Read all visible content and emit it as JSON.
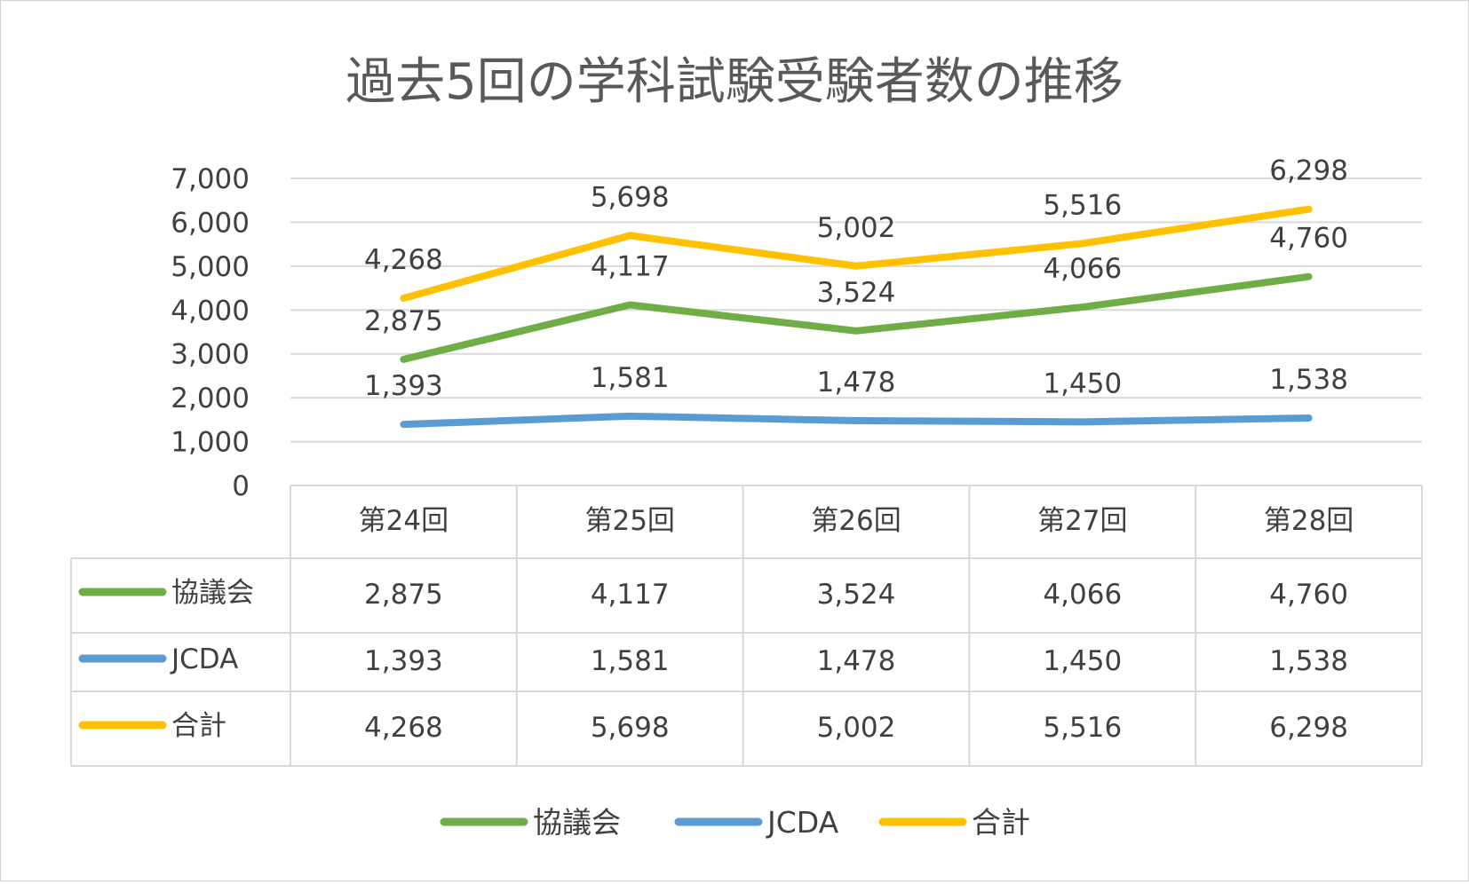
{
  "colors": {
    "kyogikai": "#70ad47",
    "jcda": "#5b9bd5",
    "total": "#ffc000",
    "grid": "#d9d9d9",
    "text": "#404040"
  },
  "chart_data": {
    "type": "line",
    "title": "過去5回の学科試験受験者数の推移",
    "categories": [
      "第24回",
      "第25回",
      "第26回",
      "第27回",
      "第28回"
    ],
    "series": [
      {
        "name": "協議会",
        "values": [
          2875,
          4117,
          3524,
          4066,
          4760
        ],
        "labels": [
          "2,875",
          "4,117",
          "3,524",
          "4,066",
          "4,760"
        ],
        "color": "#70ad47"
      },
      {
        "name": "JCDA",
        "values": [
          1393,
          1581,
          1478,
          1450,
          1538
        ],
        "labels": [
          "1,393",
          "1,581",
          "1,478",
          "1,450",
          "1,538"
        ],
        "color": "#5b9bd5"
      },
      {
        "name": "合計",
        "values": [
          4268,
          5698,
          5002,
          5516,
          6298
        ],
        "labels": [
          "4,268",
          "5,698",
          "5,002",
          "5,516",
          "6,298"
        ],
        "color": "#ffc000"
      }
    ],
    "yticks": [
      "0",
      "1,000",
      "2,000",
      "3,000",
      "4,000",
      "5,000",
      "6,000",
      "7,000"
    ],
    "ylim": [
      0,
      7000
    ],
    "grid": true,
    "legend_placement": "bottom",
    "data_table": true
  }
}
